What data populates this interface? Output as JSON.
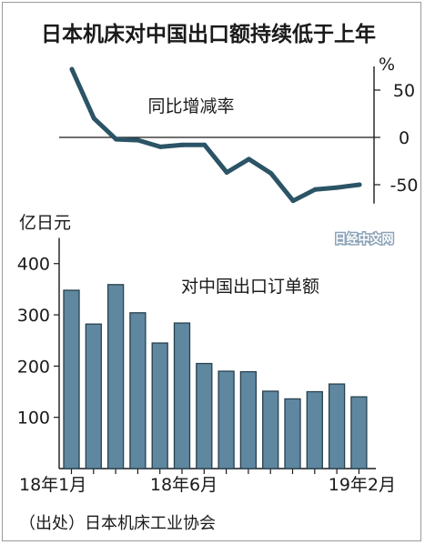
{
  "header": {
    "title": "日本机床对中国出口额持续低于上年"
  },
  "watermark": "日经中文网",
  "source": "（出处）日本机床工业协会",
  "colors": {
    "line": "#2b5466",
    "bar": "#5f88a0",
    "bar_edge": "#27404e",
    "axis": "#1a1a1a"
  },
  "chart_data": [
    {
      "type": "line",
      "title": "同比增减率",
      "unit": "%",
      "y_ticks": [
        50,
        0,
        -50
      ],
      "ylim": [
        -70,
        75
      ],
      "categories": [
        "18年1月",
        "18年2月",
        "18年3月",
        "18年4月",
        "18年5月",
        "18年6月",
        "18年7月",
        "18年8月",
        "18年9月",
        "18年10月",
        "18年11月",
        "18年12月",
        "19年1月",
        "19年2月"
      ],
      "series": [
        {
          "values": [
            72,
            20,
            -2,
            -3,
            -10,
            -8,
            -8,
            -37,
            -23,
            -38,
            -67,
            -55,
            -53,
            -50
          ]
        }
      ]
    },
    {
      "type": "bar",
      "title": "对中国出口订单额",
      "unit": "亿日元",
      "y_ticks": [
        100,
        200,
        300,
        400
      ],
      "ylim": [
        0,
        450
      ],
      "categories": [
        "18年1月",
        "18年2月",
        "18年3月",
        "18年4月",
        "18年5月",
        "18年6月",
        "18年7月",
        "18年8月",
        "18年9月",
        "18年10月",
        "18年11月",
        "18年12月",
        "19年1月",
        "19年2月"
      ],
      "x_tick_labels": [
        "18年1月",
        "18年6月",
        "19年2月"
      ],
      "series": [
        {
          "values": [
            348,
            282,
            359,
            304,
            245,
            284,
            205,
            190,
            189,
            151,
            136,
            150,
            165,
            140
          ]
        }
      ]
    }
  ]
}
